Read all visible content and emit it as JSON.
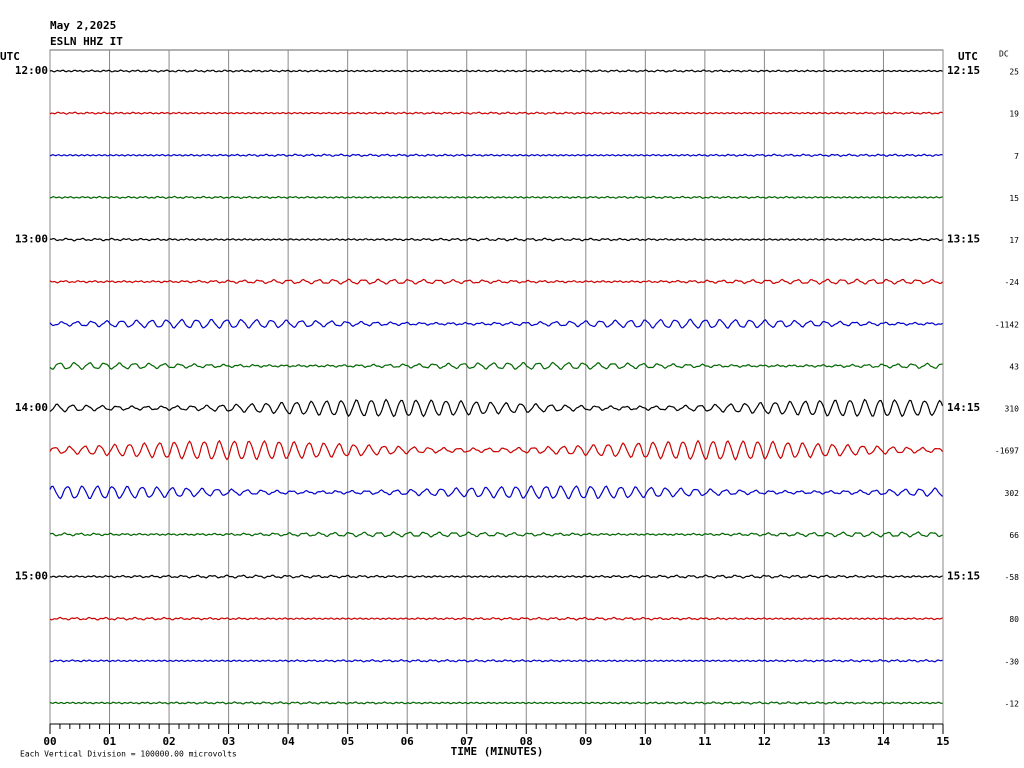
{
  "header": {
    "date": "May 2,2025",
    "station": "ESLN HHZ IT"
  },
  "left_axis": {
    "unit": "UTC",
    "labels": [
      "12:00",
      "13:00",
      "14:00",
      "15:00"
    ]
  },
  "right_axis": {
    "unit": "UTC",
    "labels": [
      "12:15",
      "13:15",
      "14:15",
      "15:15"
    ]
  },
  "dc": {
    "title": "DC",
    "values": [
      "25",
      "19",
      "7",
      "15",
      "17",
      "-24",
      "-1142",
      "43",
      "310",
      "-1697",
      "302",
      "66",
      "-58",
      "80",
      "-30",
      "-12"
    ]
  },
  "x_axis": {
    "ticks": [
      "00",
      "01",
      "02",
      "03",
      "04",
      "05",
      "06",
      "07",
      "08",
      "09",
      "10",
      "11",
      "12",
      "13",
      "14",
      "15"
    ],
    "title": "TIME (MINUTES)"
  },
  "footer": {
    "note": "Each Vertical Division = 100000.00 microvolts"
  }
}
